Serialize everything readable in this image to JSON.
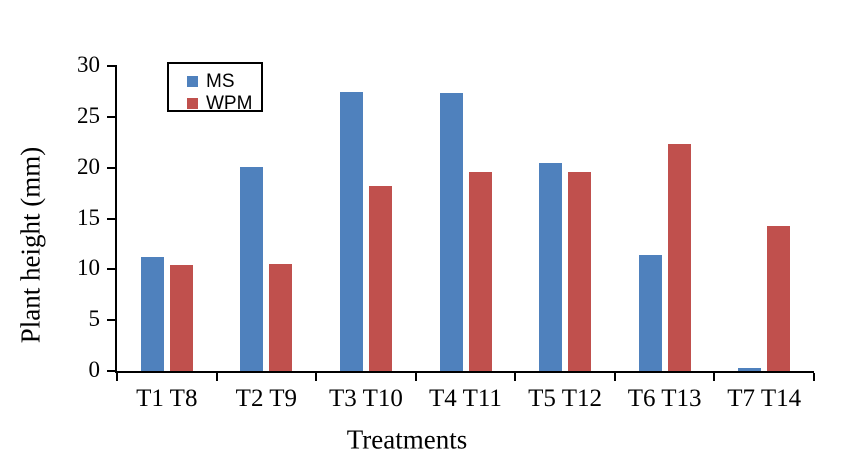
{
  "chart_data": {
    "type": "bar",
    "title": "",
    "xlabel": "Treatments",
    "ylabel": "Plant height (mm)",
    "categories": [
      "T1 T8",
      "T2 T9",
      "T3 T10",
      "T4 T11",
      "T5 T12",
      "T6 T13",
      "T7 T14"
    ],
    "series": [
      {
        "name": "MS",
        "color": "#4f81bd",
        "values": [
          11.2,
          20.1,
          27.4,
          27.3,
          20.5,
          11.4,
          0.3
        ]
      },
      {
        "name": "WPM",
        "color": "#c0504d",
        "values": [
          10.4,
          10.5,
          18.2,
          19.6,
          19.6,
          22.3,
          14.3
        ]
      }
    ],
    "ylim": [
      0,
      30
    ],
    "yticks": [
      0,
      5,
      10,
      15,
      20,
      25,
      30
    ],
    "grid": false,
    "legend_position": "top-left-inside",
    "axis_color": "#000000",
    "background": "#ffffff"
  }
}
